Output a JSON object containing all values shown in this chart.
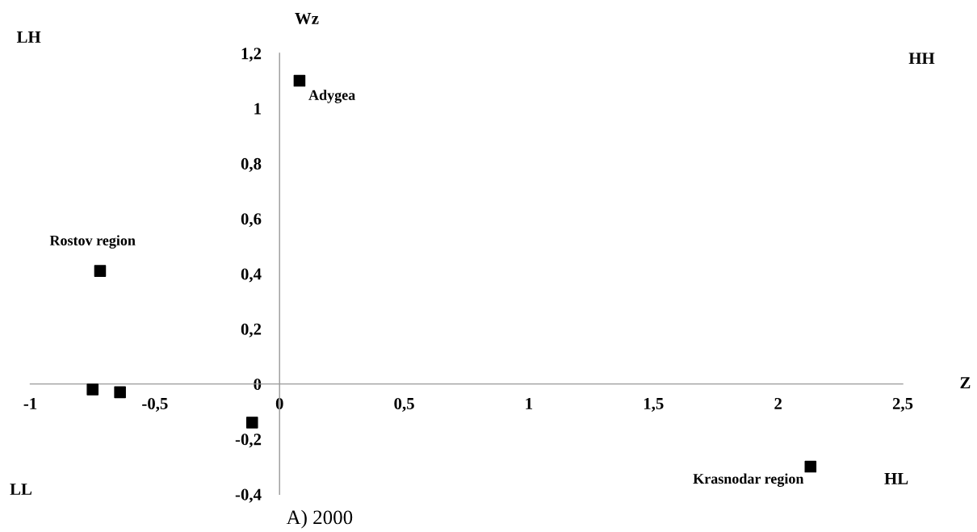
{
  "chart_data": {
    "type": "scatter",
    "xlabel": "Z",
    "ylabel": "Wz",
    "marker": "square",
    "grid": false,
    "legend": false,
    "x": [
      0.08,
      -0.72,
      -0.75,
      -0.64,
      -0.11,
      2.13
    ],
    "series": [
      {
        "color": "#000000",
        "values": [
          1.1,
          0.41,
          -0.02,
          -0.03,
          -0.14,
          -0.3
        ]
      }
    ],
    "xlim": [
      -1,
      2.5
    ],
    "ylim": [
      -0.4,
      1.2
    ],
    "xticks": [
      -1,
      {
        "value": -0.5,
        "label": "-0,5"
      },
      0,
      {
        "value": 0.5,
        "label": "0,5"
      },
      1,
      {
        "value": 1.5,
        "label": "1,5"
      },
      2,
      {
        "value": 2.5,
        "label": "2,5"
      }
    ],
    "yticks": [
      {
        "value": -0.4,
        "label": "-0,4"
      },
      {
        "value": -0.2,
        "label": "-0,2"
      },
      0,
      {
        "value": 0.2,
        "label": "0,2"
      },
      {
        "value": 0.4,
        "label": "0,4"
      },
      {
        "value": 0.6,
        "label": "0,6"
      },
      {
        "value": 0.8,
        "label": "0,8"
      },
      1,
      {
        "value": 1.2,
        "label": "1,2"
      }
    ],
    "annotations": [
      {
        "text": "Adygea",
        "x": 0.08,
        "y": 1.1
      },
      {
        "text": "Rostov region",
        "x": -0.72,
        "y": 0.41
      },
      {
        "text": "Krasnodar region",
        "x": 2.13,
        "y": -0.3
      },
      "LH",
      "HH",
      "LL",
      "HL",
      "A) 2000"
    ]
  }
}
